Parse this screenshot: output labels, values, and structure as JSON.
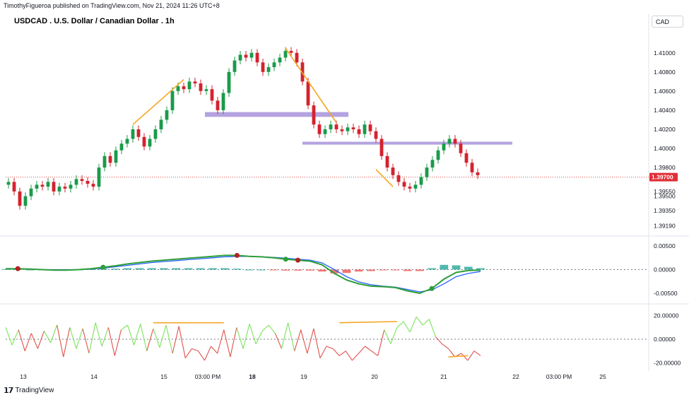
{
  "header": {
    "published": "TimothyFigueroa published on TradingView.com, Nov 21, 2024 11:26 UTC+8"
  },
  "currency_badge": "CAD",
  "footer": {
    "brand": "TradingView"
  },
  "chart_data": {
    "type": "candlestick",
    "title": "USDCAD . U.S. Dollar / Canadian Dollar . 1h",
    "price_axis": {
      "ticks": [
        "1.41000",
        "1.40800",
        "1.40600",
        "1.40400",
        "1.40200",
        "1.40000",
        "1.39800",
        "1.39550",
        "1.39500",
        "1.39350",
        "1.39190"
      ],
      "ylim": [
        1.3915,
        1.4122
      ],
      "current_price": "1.39700"
    },
    "time_axis": {
      "labels": [
        "13",
        "14",
        "15",
        "03:00 PM",
        "18",
        "19",
        "20",
        "21",
        "22",
        "03:00 PM",
        "25"
      ]
    },
    "candles_close": [
      1.3965,
      1.3955,
      1.394,
      1.395,
      1.3958,
      1.3962,
      1.396,
      1.3965,
      1.3955,
      1.396,
      1.3958,
      1.3962,
      1.3968,
      1.3966,
      1.3963,
      1.396,
      1.398,
      1.3992,
      1.3985,
      1.3998,
      1.4005,
      1.401,
      1.402,
      1.4012,
      1.4002,
      1.401,
      1.402,
      1.403,
      1.404,
      1.406,
      1.4065,
      1.4062,
      1.407,
      1.4068,
      1.406,
      1.4062,
      1.405,
      1.404,
      1.4058,
      1.408,
      1.4092,
      1.4098,
      1.4095,
      1.41,
      1.409,
      1.408,
      1.4085,
      1.409,
      1.4095,
      1.4102,
      1.41,
      1.409,
      1.407,
      1.4045,
      1.4025,
      1.4015,
      1.402,
      1.4025,
      1.402,
      1.4018,
      1.4022,
      1.402,
      1.4015,
      1.4025,
      1.4018,
      1.401,
      1.3992,
      1.398,
      1.3972,
      1.3965,
      1.396,
      1.3958,
      1.3962,
      1.397,
      1.398,
      1.3988,
      1.3998,
      1.4005,
      1.401,
      1.4005,
      1.3995,
      1.3985,
      1.3975,
      1.3972
    ],
    "zones": [
      {
        "from": 1.4033,
        "to": 1.4038
      },
      {
        "from": 1.4004,
        "to": 1.4007
      }
    ],
    "macd": {
      "ticks": [
        "0.00500",
        "0.00000",
        "-0.00500"
      ],
      "ylim": [
        -0.0065,
        0.0065
      ],
      "macd_line": [
        0.0002,
        0.0002,
        0.0001,
        0.0,
        -0.0001,
        -0.0001,
        0.0,
        0.0002,
        0.0005,
        0.0008,
        0.0012,
        0.0015,
        0.0018,
        0.002,
        0.0022,
        0.0024,
        0.0026,
        0.0028,
        0.003,
        0.003,
        0.0028,
        0.0027,
        0.0025,
        0.0022,
        0.002,
        0.0018,
        0.001,
        -0.0008,
        -0.0022,
        -0.003,
        -0.0035,
        -0.0036,
        -0.0038,
        -0.0045,
        -0.005,
        -0.004,
        -0.002,
        -0.0006,
        -0.0002,
        -0.0001
      ],
      "signal_line": [
        0.0002,
        0.0001,
        0.0001,
        0.0,
        0.0,
        0.0,
        0.0,
        0.0001,
        0.0003,
        0.0006,
        0.0009,
        0.0012,
        0.0015,
        0.0017,
        0.0019,
        0.0021,
        0.0023,
        0.0025,
        0.0027,
        0.0028,
        0.0028,
        0.0027,
        0.0026,
        0.0024,
        0.0022,
        0.002,
        0.0014,
        0.0,
        -0.0015,
        -0.0026,
        -0.0032,
        -0.0035,
        -0.0037,
        -0.0042,
        -0.0047,
        -0.0043,
        -0.003,
        -0.0015,
        -0.0008,
        -0.0004
      ],
      "histogram": [
        0.0001,
        0.0001,
        0.0,
        0.0,
        -0.0001,
        -0.0001,
        0.0,
        0.0001,
        0.0002,
        0.0002,
        0.0003,
        0.0003,
        0.0003,
        0.0003,
        0.0003,
        0.0003,
        0.0003,
        0.0003,
        0.0003,
        0.0002,
        0.0,
        0.0,
        -0.0001,
        -0.0002,
        -0.0002,
        -0.0002,
        -0.0004,
        -0.0008,
        -0.0007,
        -0.0004,
        -0.0003,
        -0.0001,
        -0.0001,
        -0.0003,
        -0.0003,
        0.0003,
        0.001,
        0.0009,
        0.0006,
        0.0003
      ]
    },
    "rsi": {
      "ticks": [
        "20.00000",
        "0.00000",
        "-20.00000"
      ],
      "ylim": [
        -24,
        24
      ],
      "values": [
        10,
        -5,
        8,
        -10,
        5,
        -8,
        7,
        -3,
        12,
        -15,
        10,
        -8,
        9,
        -12,
        14,
        -6,
        10,
        -14,
        8,
        12,
        -5,
        13,
        -10,
        9,
        -7,
        12,
        -12,
        11,
        -16,
        -8,
        -10,
        -18,
        -6,
        -12,
        8,
        -15,
        10,
        -8,
        13,
        -4,
        7,
        12,
        5,
        -8,
        14,
        -10,
        8,
        -12,
        9,
        -16,
        -6,
        -8,
        -14,
        -10,
        -18,
        -12,
        -6,
        -10,
        -14,
        8,
        -4,
        10,
        15,
        6,
        19,
        12,
        17,
        2,
        -4,
        -8,
        -15,
        -12,
        -18,
        -10,
        -14
      ]
    }
  }
}
